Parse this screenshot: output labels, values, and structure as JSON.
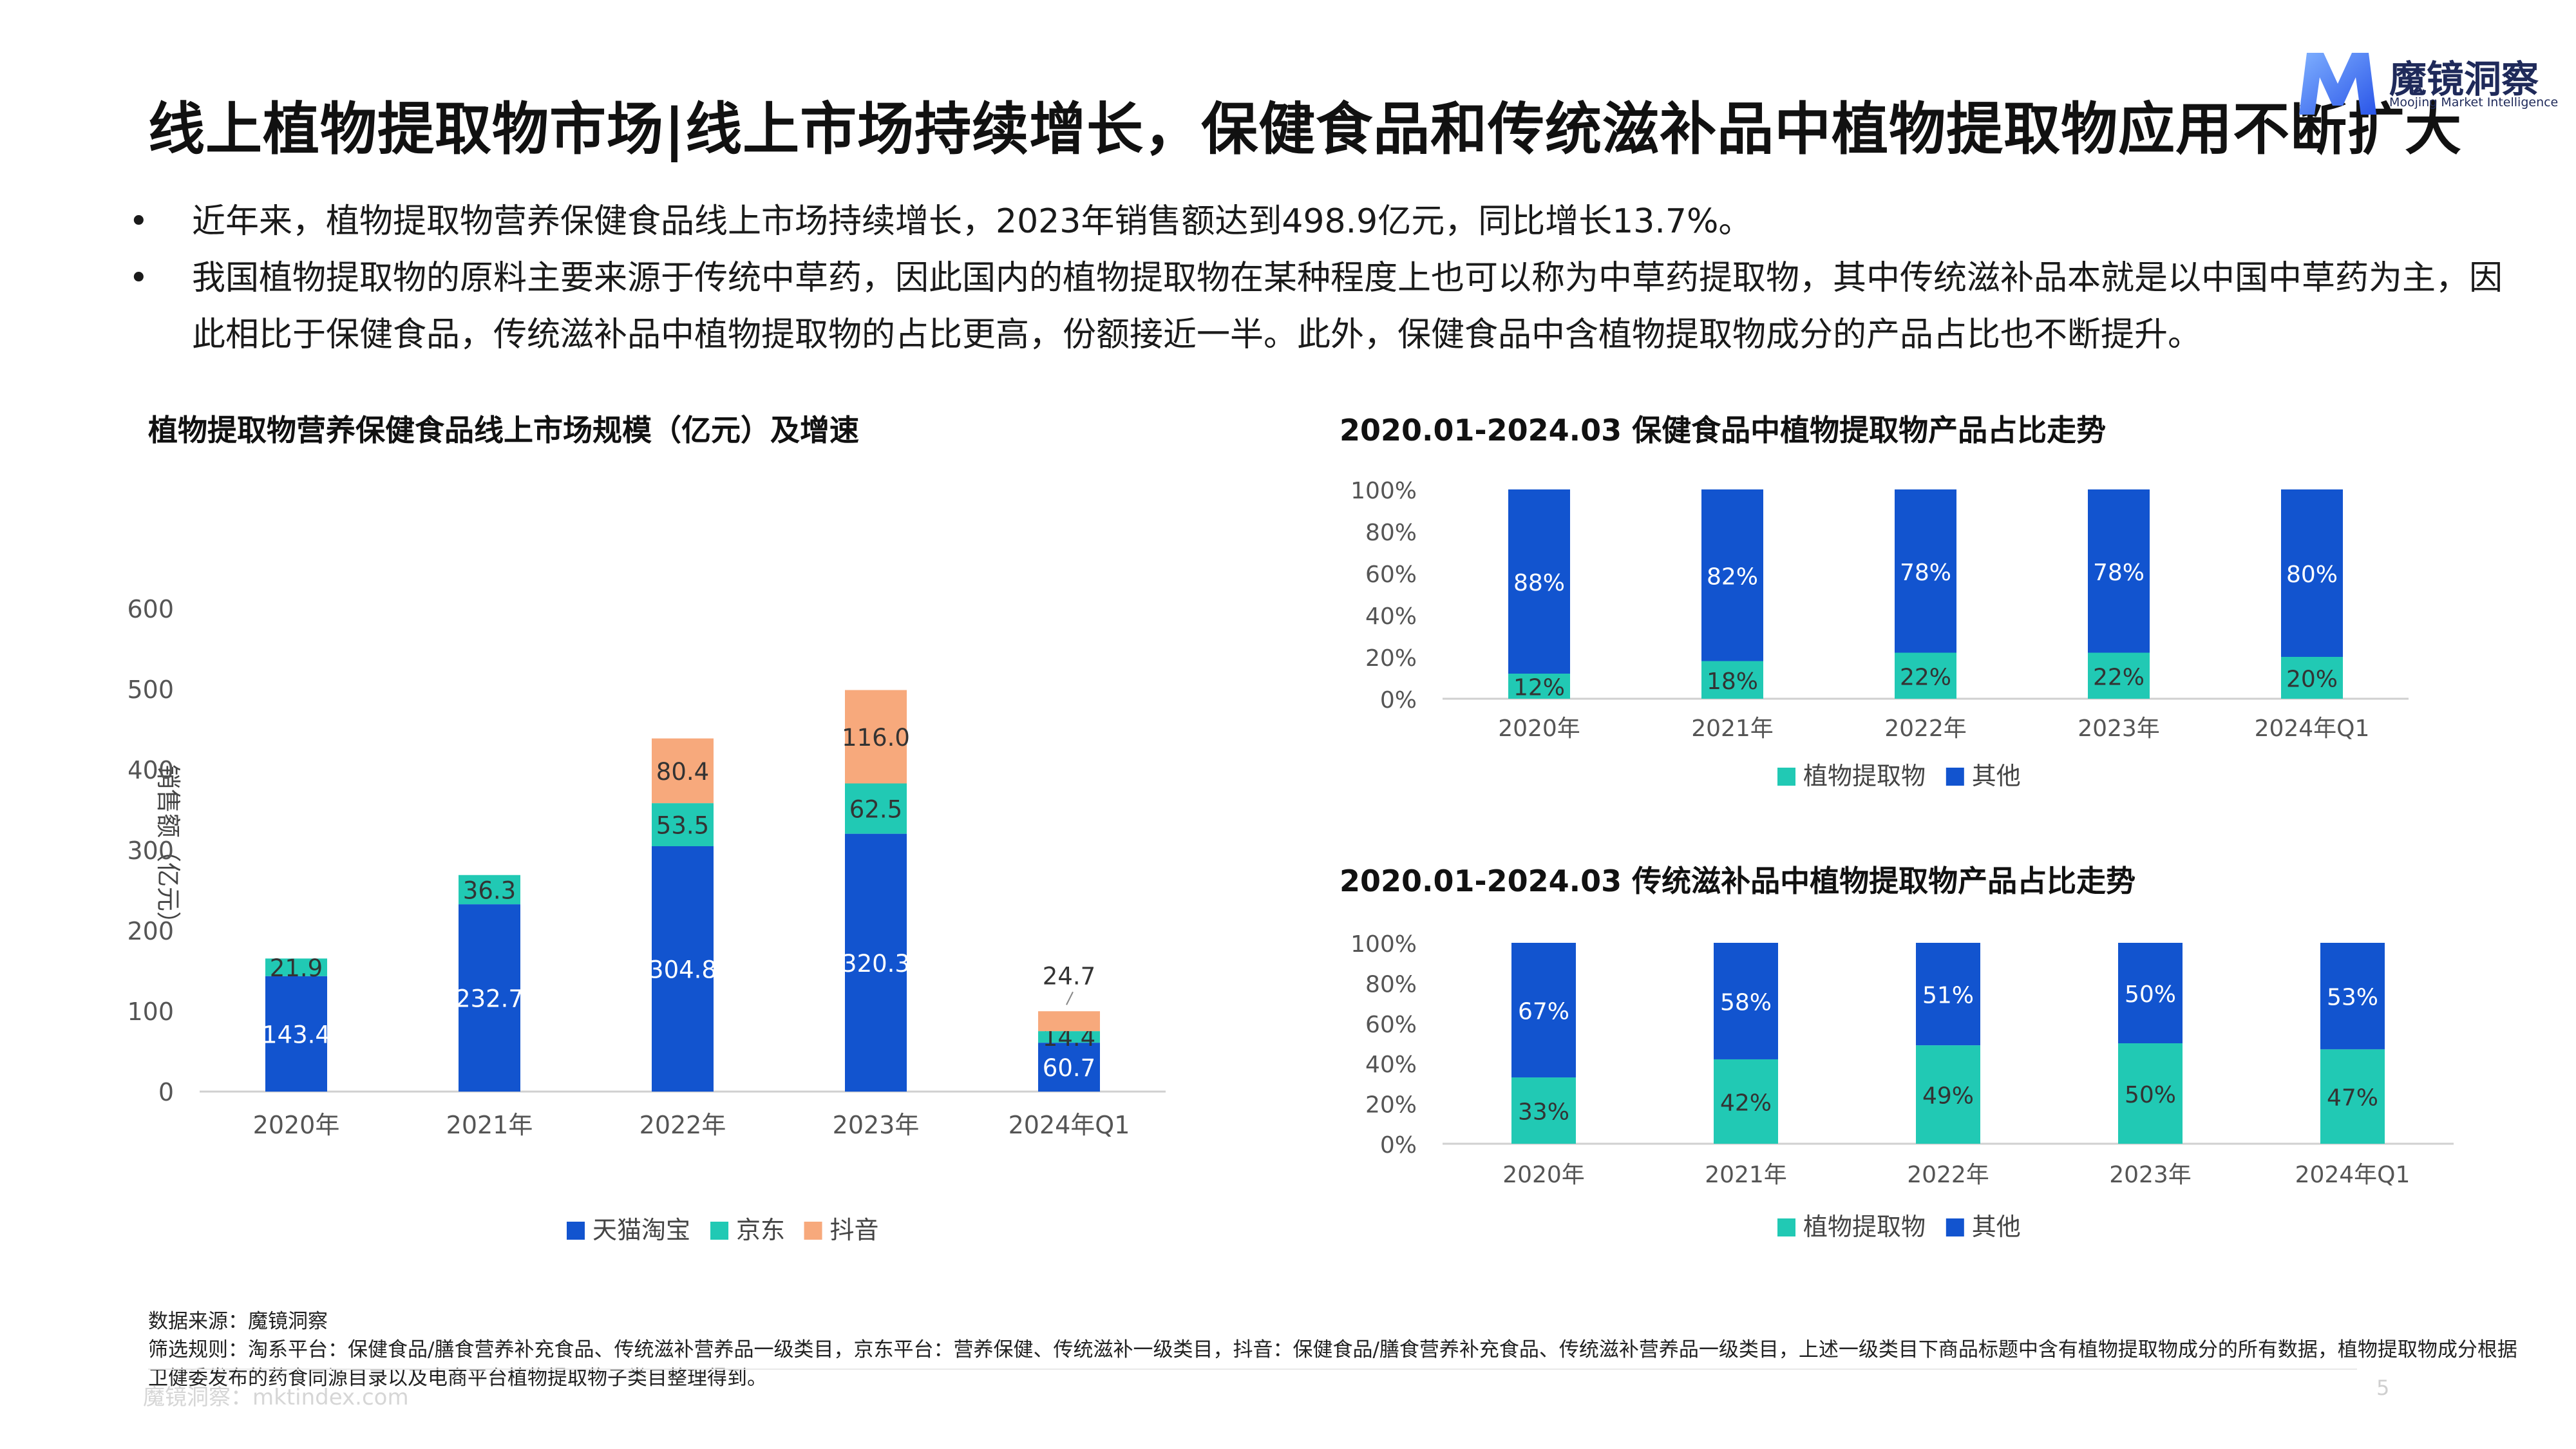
{
  "header": {
    "title": "线上植物提取物市场|线上市场持续增长，保健食品和传统滋补品中植物提取物应用不断扩大",
    "logo_text": "魔镜洞察",
    "logo_sub": "Moojing Market Intelligence",
    "logo_color": "#3d6af2"
  },
  "bullets": [
    "近年来，植物提取物营养保健食品线上市场持续增长，2023年销售额达到498.9亿元，同比增长13.7%。",
    "我国植物提取物的原料主要来源于传统中草药，因此国内的植物提取物在某种程度上也可以称为中草药提取物，其中传统滋补品本就是以中国中草药为主，因此相比于保健食品，传统滋补品中植物提取物的占比更高，份额接近一半。此外，保健食品中含植物提取物成分的产品占比也不断提升。"
  ],
  "chart_data": [
    {
      "type": "bar",
      "stacked": true,
      "title": "植物提取物营养保健食品线上市场规模（亿元）及增速",
      "ylabel": "销售额（亿元）",
      "xlabel": "",
      "ylim": [
        0,
        600
      ],
      "yticks": [
        "0",
        "100",
        "200",
        "300",
        "400",
        "500",
        "600"
      ],
      "categories": [
        "2020年",
        "2021年",
        "2022年",
        "2023年",
        "2024年Q1"
      ],
      "series": [
        {
          "name": "天猫淘宝",
          "color": "#1254cf",
          "values": [
            143.4,
            232.7,
            304.8,
            320.3,
            60.7
          ],
          "labels": [
            "143.4",
            "232.7",
            "304.8",
            "320.3",
            "60.7"
          ]
        },
        {
          "name": "京东",
          "color": "#21c9b4",
          "values": [
            21.9,
            36.3,
            53.5,
            62.5,
            14.4
          ],
          "labels": [
            "21.9",
            "36.3",
            "53.5",
            "62.5",
            "14.4"
          ]
        },
        {
          "name": "抖音",
          "color": "#f7a97c",
          "values": [
            0,
            0,
            80.4,
            116.0,
            24.7
          ],
          "labels": [
            "",
            "",
            "80.4",
            "116.0",
            "24.7"
          ]
        }
      ],
      "legend_position": "bottom",
      "grid": false
    },
    {
      "type": "bar",
      "stacked": true,
      "percent": true,
      "title": "2020.01-2024.03 保健食品中植物提取物产品占比走势",
      "ylim": [
        0,
        100
      ],
      "yticks": [
        "0%",
        "20%",
        "40%",
        "60%",
        "80%",
        "100%"
      ],
      "categories": [
        "2020年",
        "2021年",
        "2022年",
        "2023年",
        "2024年Q1"
      ],
      "series": [
        {
          "name": "植物提取物",
          "color": "#21c9b4",
          "values": [
            12,
            18,
            22,
            22,
            20
          ],
          "labels": [
            "12%",
            "18%",
            "22%",
            "22%",
            "20%"
          ]
        },
        {
          "name": "其他",
          "color": "#1254cf",
          "values": [
            88,
            82,
            78,
            78,
            80
          ],
          "labels": [
            "88%",
            "82%",
            "78%",
            "78%",
            "80%"
          ]
        }
      ],
      "legend_position": "bottom",
      "grid": false
    },
    {
      "type": "bar",
      "stacked": true,
      "percent": true,
      "title": "2020.01-2024.03 传统滋补品中植物提取物产品占比走势",
      "ylim": [
        0,
        100
      ],
      "yticks": [
        "0%",
        "20%",
        "40%",
        "60%",
        "80%",
        "100%"
      ],
      "categories": [
        "2020年",
        "2021年",
        "2022年",
        "2023年",
        "2024年Q1"
      ],
      "series": [
        {
          "name": "植物提取物",
          "color": "#21c9b4",
          "values": [
            33,
            42,
            49,
            50,
            47
          ],
          "labels": [
            "33%",
            "42%",
            "49%",
            "50%",
            "47%"
          ]
        },
        {
          "name": "其他",
          "color": "#1254cf",
          "values": [
            67,
            58,
            51,
            50,
            53
          ],
          "labels": [
            "67%",
            "58%",
            "51%",
            "50%",
            "53%"
          ]
        }
      ],
      "legend_position": "bottom",
      "grid": false
    }
  ],
  "footnote": {
    "source": "数据来源：魔镜洞察",
    "rules": "筛选规则：淘系平台：保健食品/膳食营养补充食品、传统滋补营养品一级类目，京东平台：营养保健、传统滋补一级类目，抖音：保健食品/膳食营养补充食品、传统滋补营养品一级类目，上述一级类目下商品标题中含有植物提取物成分的所有数据，植物提取物成分根据卫健委发布的药食同源目录以及电商平台植物提取物子类目整理得到。"
  },
  "footer": {
    "brand": "魔镜洞察：mktindex.com",
    "page_number": "5"
  }
}
